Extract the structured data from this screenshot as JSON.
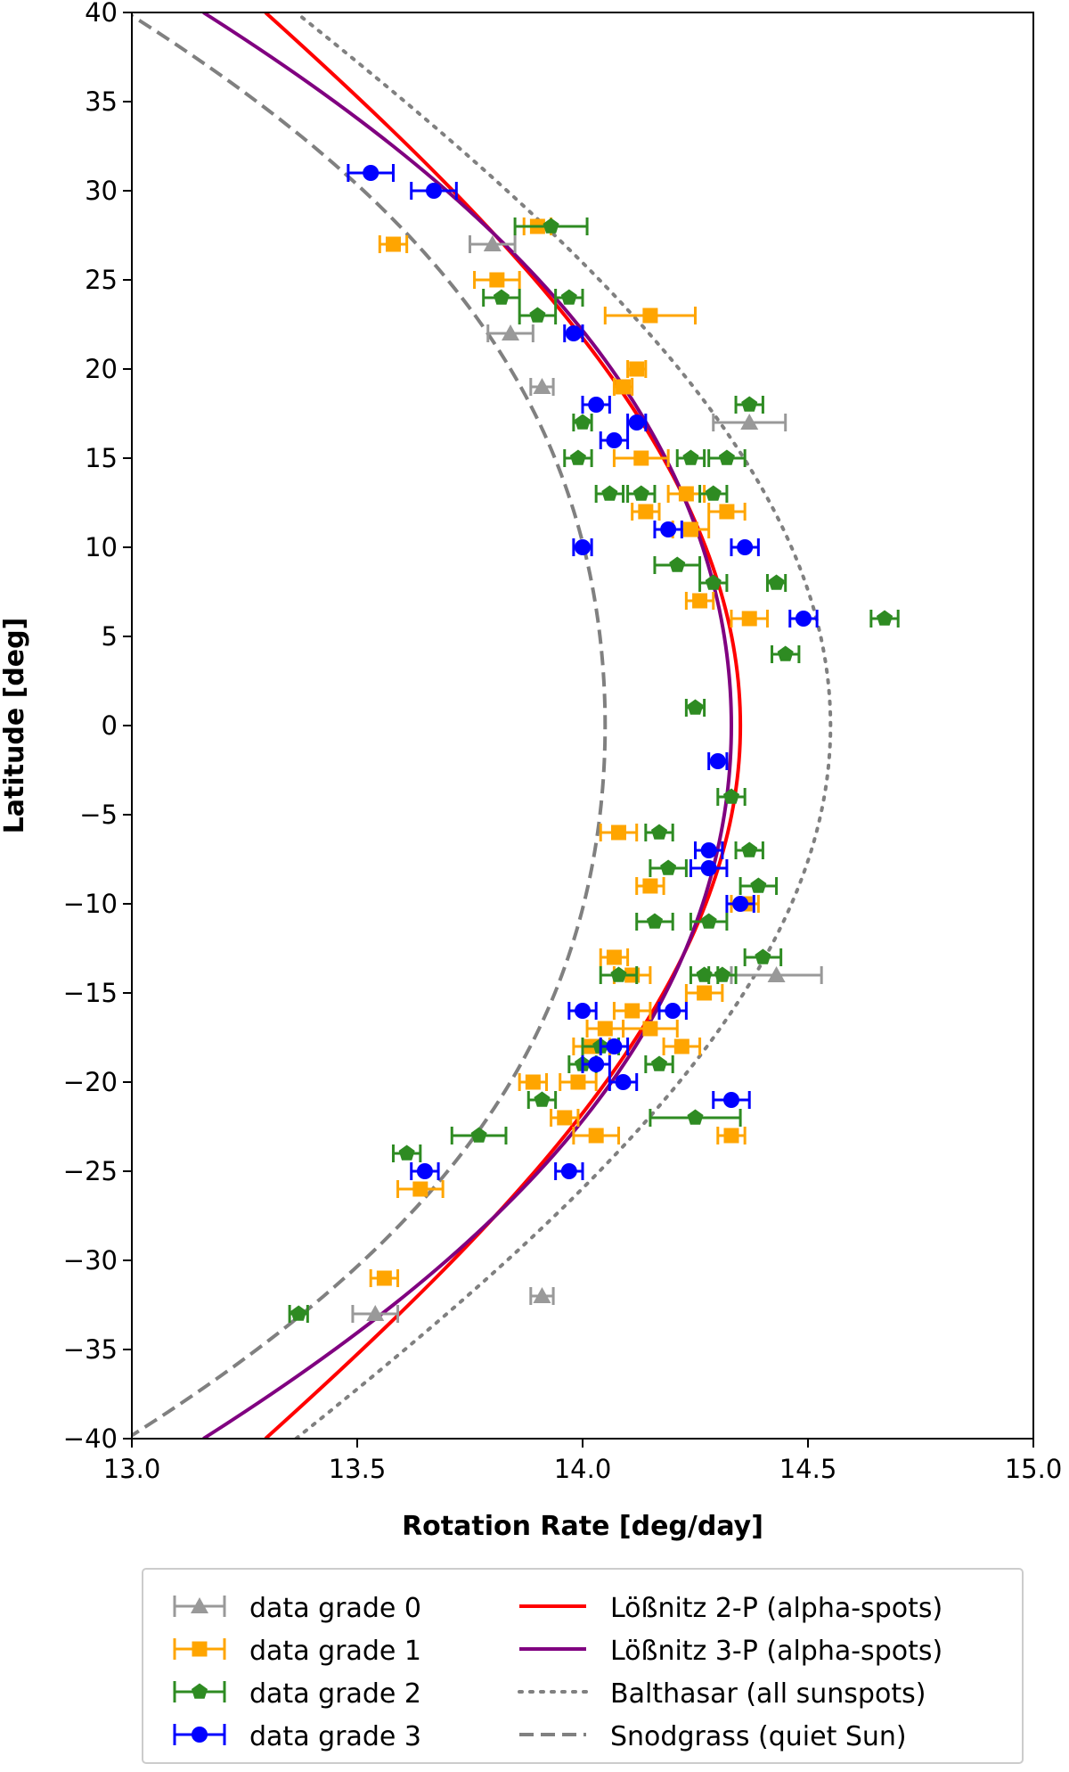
{
  "chart_data": {
    "type": "scatter",
    "xlabel": "Rotation Rate [deg/day]",
    "ylabel": "Latitude [deg]",
    "xlim": [
      13.0,
      15.0
    ],
    "ylim": [
      -40,
      40
    ],
    "x_ticks": [
      "13.0",
      "13.5",
      "14.0",
      "14.5",
      "15.0"
    ],
    "y_ticks": [
      "40",
      "35",
      "30",
      "25",
      "20",
      "15",
      "10",
      "5",
      "0",
      "−5",
      "−10",
      "−15",
      "−20",
      "−25",
      "−30",
      "−35",
      "−40"
    ],
    "grid": false,
    "legend_position": "below",
    "series": [
      {
        "name": "data grade 0",
        "marker": "triangle",
        "color": "#999999",
        "points": [
          [
            13.8,
            27,
            0.05
          ],
          [
            13.84,
            22,
            0.05
          ],
          [
            13.91,
            19,
            0.025
          ],
          [
            14.37,
            17,
            0.08
          ],
          [
            14.43,
            -14,
            0.1
          ],
          [
            13.91,
            -32,
            0.025
          ],
          [
            13.54,
            -33,
            0.05
          ]
        ]
      },
      {
        "name": "data grade 1",
        "marker": "square",
        "color": "#ffa500",
        "points": [
          [
            13.58,
            27,
            0.03
          ],
          [
            13.9,
            28,
            0.03
          ],
          [
            13.81,
            25,
            0.05
          ],
          [
            14.15,
            23,
            0.1
          ],
          [
            14.12,
            20,
            0.02
          ],
          [
            14.09,
            19,
            0.02
          ],
          [
            14.13,
            15,
            0.06
          ],
          [
            14.23,
            13,
            0.04
          ],
          [
            14.14,
            12,
            0.03
          ],
          [
            14.32,
            12,
            0.04
          ],
          [
            14.24,
            11,
            0.04
          ],
          [
            14.26,
            7,
            0.03
          ],
          [
            14.37,
            6,
            0.04
          ],
          [
            14.08,
            -6,
            0.04
          ],
          [
            14.36,
            -10,
            0.03
          ],
          [
            14.15,
            -9,
            0.03
          ],
          [
            14.07,
            -13,
            0.03
          ],
          [
            14.11,
            -14,
            0.04
          ],
          [
            14.27,
            -15,
            0.04
          ],
          [
            14.11,
            -16,
            0.04
          ],
          [
            14.15,
            -17,
            0.06
          ],
          [
            14.05,
            -17,
            0.04
          ],
          [
            14.22,
            -18,
            0.04
          ],
          [
            14.02,
            -18,
            0.04
          ],
          [
            13.99,
            -20,
            0.04
          ],
          [
            13.89,
            -20,
            0.03
          ],
          [
            13.96,
            -22,
            0.03
          ],
          [
            14.03,
            -23,
            0.05
          ],
          [
            14.33,
            -23,
            0.03
          ],
          [
            13.64,
            -26,
            0.05
          ],
          [
            13.56,
            -31,
            0.03
          ]
        ]
      },
      {
        "name": "data grade 2",
        "marker": "pentagon",
        "color": "#2e8b22",
        "points": [
          [
            13.93,
            28,
            0.08
          ],
          [
            13.82,
            24,
            0.04
          ],
          [
            13.97,
            24,
            0.03
          ],
          [
            13.9,
            23,
            0.04
          ],
          [
            14.37,
            18,
            0.03
          ],
          [
            14.0,
            17,
            0.02
          ],
          [
            13.99,
            15,
            0.03
          ],
          [
            14.24,
            15,
            0.03
          ],
          [
            14.32,
            15,
            0.04
          ],
          [
            14.06,
            13,
            0.03
          ],
          [
            14.13,
            13,
            0.03
          ],
          [
            14.29,
            13,
            0.03
          ],
          [
            14.21,
            9,
            0.05
          ],
          [
            14.29,
            8,
            0.03
          ],
          [
            14.43,
            8,
            0.02
          ],
          [
            14.67,
            6,
            0.03
          ],
          [
            14.45,
            4,
            0.03
          ],
          [
            14.25,
            1,
            0.02
          ],
          [
            14.33,
            -4,
            0.03
          ],
          [
            14.17,
            -6,
            0.03
          ],
          [
            14.37,
            -7,
            0.03
          ],
          [
            14.19,
            -8,
            0.04
          ],
          [
            14.39,
            -9,
            0.04
          ],
          [
            14.16,
            -11,
            0.04
          ],
          [
            14.28,
            -11,
            0.04
          ],
          [
            14.4,
            -13,
            0.04
          ],
          [
            14.08,
            -14,
            0.04
          ],
          [
            14.27,
            -14,
            0.03
          ],
          [
            14.31,
            -14,
            0.03
          ],
          [
            14.04,
            -18,
            0.04
          ],
          [
            14.17,
            -19,
            0.03
          ],
          [
            14.0,
            -19,
            0.03
          ],
          [
            13.91,
            -21,
            0.03
          ],
          [
            14.25,
            -22,
            0.1
          ],
          [
            13.77,
            -23,
            0.06
          ],
          [
            13.61,
            -24,
            0.03
          ],
          [
            13.37,
            -33,
            0.02
          ]
        ]
      },
      {
        "name": "data grade 3",
        "marker": "circle",
        "color": "#0000ff",
        "points": [
          [
            13.53,
            31,
            0.05
          ],
          [
            13.67,
            30,
            0.05
          ],
          [
            13.98,
            22,
            0.02
          ],
          [
            14.03,
            18,
            0.03
          ],
          [
            14.12,
            17,
            0.02
          ],
          [
            14.07,
            16,
            0.03
          ],
          [
            14.19,
            11,
            0.03
          ],
          [
            14.0,
            10,
            0.02
          ],
          [
            14.36,
            10,
            0.03
          ],
          [
            14.49,
            6,
            0.03
          ],
          [
            14.3,
            -2,
            0.02
          ],
          [
            14.28,
            -7,
            0.03
          ],
          [
            14.28,
            -8,
            0.04
          ],
          [
            14.35,
            -10,
            0.03
          ],
          [
            14.0,
            -16,
            0.03
          ],
          [
            14.2,
            -16,
            0.03
          ],
          [
            14.07,
            -18,
            0.03
          ],
          [
            14.03,
            -19,
            0.03
          ],
          [
            14.09,
            -20,
            0.03
          ],
          [
            14.33,
            -21,
            0.04
          ],
          [
            13.97,
            -25,
            0.03
          ],
          [
            13.65,
            -25,
            0.03
          ]
        ]
      }
    ],
    "curves": [
      {
        "name": "Lößnitz 2-P (alpha-spots)",
        "style": "solid",
        "color": "#ff0000",
        "a": 14.35,
        "b": -2.55,
        "c": 0
      },
      {
        "name": "Lößnitz 3-P (alpha-spots)",
        "style": "solid",
        "color": "#800080",
        "a": 14.33,
        "b": -2.05,
        "c": -1.9
      },
      {
        "name": "Balthasar (all sunspots)",
        "style": "dotted",
        "color": "#808080",
        "a": 14.55,
        "b": -2.87,
        "c": 0
      },
      {
        "name": "Snodgrass (quiet Sun)",
        "style": "dashed",
        "color": "#808080",
        "a": 14.05,
        "b": -1.49,
        "c": -2.61
      }
    ]
  }
}
